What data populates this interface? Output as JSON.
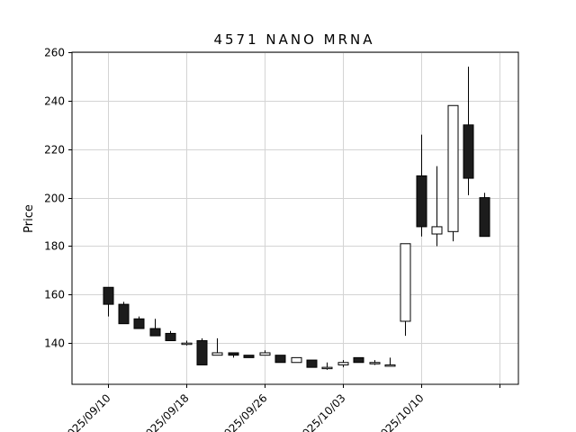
{
  "chart_data": {
    "type": "candlestick",
    "title": "4571 NANO MRNA",
    "ylabel": "Price",
    "ylim": [
      123,
      260
    ],
    "yticks": [
      140,
      160,
      180,
      200,
      220,
      240,
      260
    ],
    "xticks": [
      "2025/09/10",
      "2025/09/18",
      "2025/09/26",
      "2025/10/03",
      "2025/10/10",
      ""
    ],
    "grid": true,
    "up_color": "#ffffff",
    "down_color": "#1c1c1c",
    "edge_color": "#000000",
    "candles": [
      {
        "open": 163,
        "high": 163,
        "low": 151,
        "close": 156
      },
      {
        "open": 156,
        "high": 157,
        "low": 148,
        "close": 148
      },
      {
        "open": 150,
        "high": 151,
        "low": 146,
        "close": 146
      },
      {
        "open": 146,
        "high": 150,
        "low": 143,
        "close": 143
      },
      {
        "open": 144,
        "high": 145,
        "low": 141,
        "close": 141
      },
      {
        "open": 140,
        "high": 141,
        "low": 139,
        "close": 140
      },
      {
        "open": 141,
        "high": 142,
        "low": 131,
        "close": 131
      },
      {
        "open": 135,
        "high": 142,
        "low": 135,
        "close": 136
      },
      {
        "open": 136,
        "high": 136,
        "low": 134,
        "close": 135
      },
      {
        "open": 135,
        "high": 135,
        "low": 134,
        "close": 134
      },
      {
        "open": 135,
        "high": 137,
        "low": 135,
        "close": 136
      },
      {
        "open": 135,
        "high": 135,
        "low": 132,
        "close": 132
      },
      {
        "open": 132,
        "high": 134,
        "low": 132,
        "close": 134
      },
      {
        "open": 133,
        "high": 133,
        "low": 130,
        "close": 130
      },
      {
        "open": 130,
        "high": 132,
        "low": 129,
        "close": 130
      },
      {
        "open": 131,
        "high": 133,
        "low": 130,
        "close": 132
      },
      {
        "open": 134,
        "high": 134,
        "low": 132,
        "close": 132
      },
      {
        "open": 132,
        "high": 133,
        "low": 131,
        "close": 132
      },
      {
        "open": 131,
        "high": 134,
        "low": 131,
        "close": 131
      },
      {
        "open": 149,
        "high": 181,
        "low": 143,
        "close": 181
      },
      {
        "open": 209,
        "high": 226,
        "low": 184,
        "close": 188
      },
      {
        "open": 185,
        "high": 213,
        "low": 180,
        "close": 188
      },
      {
        "open": 186,
        "high": 238,
        "low": 182,
        "close": 238
      },
      {
        "open": 230,
        "high": 254,
        "low": 201,
        "close": 208
      },
      {
        "open": 200,
        "high": 202,
        "low": 184,
        "close": 184
      }
    ]
  }
}
